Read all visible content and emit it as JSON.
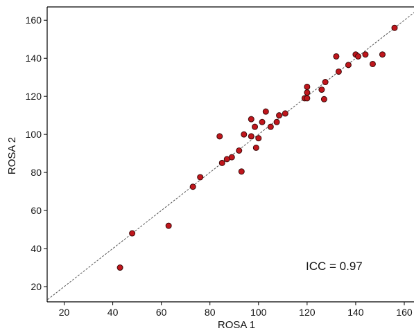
{
  "chart_data": {
    "type": "scatter",
    "title": "",
    "xlabel": "ROSA 1",
    "ylabel": "ROSA 2",
    "xlim": [
      13,
      164
    ],
    "ylim": [
      12,
      167
    ],
    "xticks": [
      20,
      40,
      60,
      80,
      100,
      120,
      140,
      160
    ],
    "yticks": [
      20,
      40,
      60,
      80,
      100,
      120,
      140,
      160
    ],
    "grid": false,
    "legend": "none",
    "reference_line": "identity (y = x), dashed",
    "annotation": "ICC = 0.97",
    "colors": {
      "point_fill": "#c0161c",
      "point_stroke": "#3a0a0a",
      "line": "#555555",
      "axis": "#000000"
    },
    "points": [
      {
        "x": 43,
        "y": 30
      },
      {
        "x": 48,
        "y": 48
      },
      {
        "x": 63,
        "y": 52
      },
      {
        "x": 73,
        "y": 72.5
      },
      {
        "x": 76,
        "y": 77.5
      },
      {
        "x": 84,
        "y": 99
      },
      {
        "x": 85,
        "y": 85
      },
      {
        "x": 87,
        "y": 87
      },
      {
        "x": 89,
        "y": 88
      },
      {
        "x": 92,
        "y": 91.5
      },
      {
        "x": 93,
        "y": 80.5
      },
      {
        "x": 94,
        "y": 100
      },
      {
        "x": 97,
        "y": 108
      },
      {
        "x": 97,
        "y": 99
      },
      {
        "x": 98.5,
        "y": 104
      },
      {
        "x": 99,
        "y": 93
      },
      {
        "x": 100,
        "y": 98
      },
      {
        "x": 101.5,
        "y": 106.5
      },
      {
        "x": 103,
        "y": 112
      },
      {
        "x": 105,
        "y": 104
      },
      {
        "x": 107.5,
        "y": 106.5
      },
      {
        "x": 108.5,
        "y": 110
      },
      {
        "x": 111,
        "y": 111
      },
      {
        "x": 119,
        "y": 119
      },
      {
        "x": 120,
        "y": 125
      },
      {
        "x": 120,
        "y": 122
      },
      {
        "x": 120,
        "y": 119
      },
      {
        "x": 126,
        "y": 123.5
      },
      {
        "x": 127,
        "y": 118.5
      },
      {
        "x": 127.5,
        "y": 127.5
      },
      {
        "x": 132,
        "y": 141
      },
      {
        "x": 133,
        "y": 133
      },
      {
        "x": 137,
        "y": 136.5
      },
      {
        "x": 140,
        "y": 142
      },
      {
        "x": 141,
        "y": 141
      },
      {
        "x": 144,
        "y": 142
      },
      {
        "x": 147,
        "y": 137
      },
      {
        "x": 151,
        "y": 142
      },
      {
        "x": 156,
        "y": 156
      }
    ]
  }
}
